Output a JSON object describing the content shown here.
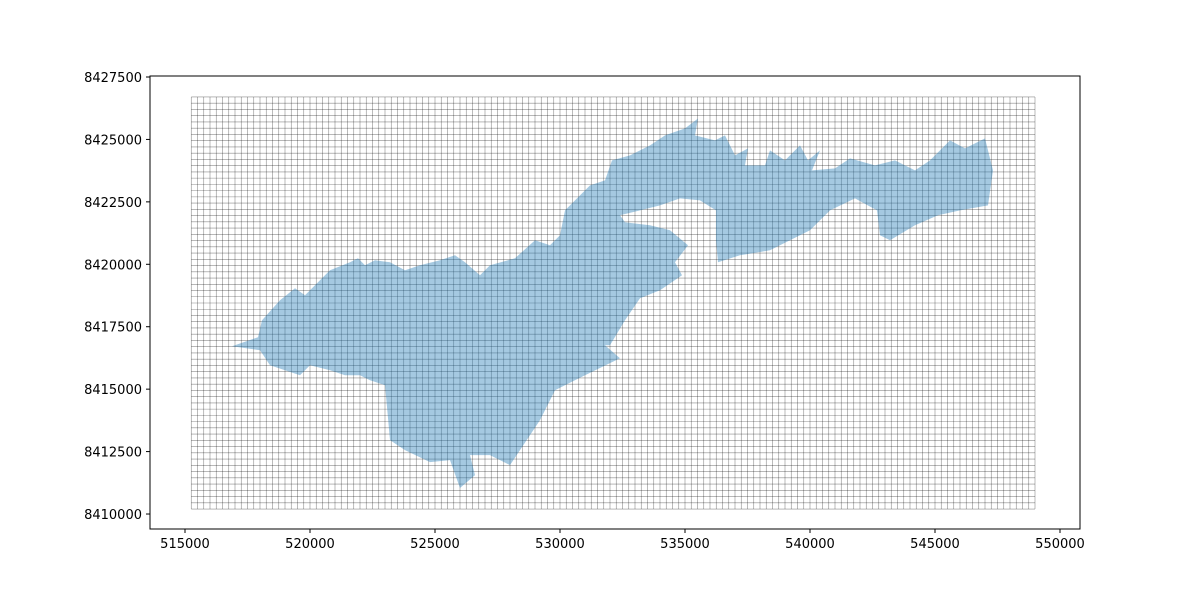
{
  "chart_data": {
    "type": "map",
    "xlim": [
      513600,
      550800
    ],
    "ylim": [
      8409400,
      8427540
    ],
    "xticks": [
      515000,
      520000,
      525000,
      530000,
      535000,
      540000,
      545000,
      550000
    ],
    "yticks": [
      8410000,
      8412500,
      8415000,
      8417500,
      8420000,
      8422500,
      8425000,
      8427500
    ],
    "mesh": {
      "xlim": [
        515250,
        549000
      ],
      "ylim": [
        8410200,
        8426700
      ],
      "cell_size": 250,
      "color": "#000000"
    },
    "polygon": {
      "color": "#1f77b4",
      "x": [
        516880,
        517920,
        518080,
        518800,
        519400,
        519800,
        520400,
        520800,
        521600,
        521920,
        522200,
        522600,
        523200,
        523800,
        524400,
        525200,
        525800,
        526200,
        526800,
        527200,
        528200,
        529000,
        529600,
        530000,
        530200,
        530800,
        531200,
        531800,
        532080,
        532800,
        533600,
        534200,
        535000,
        535520,
        535400,
        536200,
        536600,
        537000,
        537520,
        537400,
        538200,
        538400,
        539000,
        539600,
        539920,
        540400,
        540080,
        541000,
        541600,
        542600,
        543400,
        544200,
        544800,
        545600,
        546200,
        547000,
        547320,
        547120,
        546000,
        545120,
        544200,
        543200,
        542800,
        542680,
        541800,
        540800,
        540000,
        539200,
        538400,
        537200,
        536320,
        536240,
        536240,
        535600,
        534800,
        534000,
        533200,
        532400,
        532600,
        533600,
        534400,
        535120,
        534600,
        534880,
        534000,
        533200,
        532600,
        532000,
        531800,
        532400,
        531000,
        529800,
        529200,
        528000,
        527200,
        526400,
        526600,
        526000,
        525600,
        524800,
        523800,
        523200,
        523000,
        522400,
        522000,
        521400,
        520800,
        520000,
        519600,
        518400,
        518000
      ],
      "y": [
        8416720,
        8417080,
        8417760,
        8418560,
        8419040,
        8418760,
        8419360,
        8419760,
        8420080,
        8420240,
        8419960,
        8420160,
        8420080,
        8419760,
        8419960,
        8420160,
        8420360,
        8420080,
        8419560,
        8419960,
        8420240,
        8420960,
        8420760,
        8421160,
        8422160,
        8422760,
        8423160,
        8423360,
        8424160,
        8424360,
        8424760,
        8425160,
        8425440,
        8425840,
        8425160,
        8424960,
        8425160,
        8424360,
        8424640,
        8423960,
        8423960,
        8424560,
        8424160,
        8424760,
        8424160,
        8424560,
        8423760,
        8423840,
        8424240,
        8423960,
        8424160,
        8423760,
        8424160,
        8424960,
        8424640,
        8425040,
        8423760,
        8422360,
        8422160,
        8421960,
        8421560,
        8420960,
        8421160,
        8422160,
        8422640,
        8422160,
        8421360,
        8420960,
        8420560,
        8420360,
        8420080,
        8420960,
        8422160,
        8422560,
        8422640,
        8422360,
        8422160,
        8421960,
        8421680,
        8421560,
        8421360,
        8420760,
        8420080,
        8419560,
        8418960,
        8418640,
        8417760,
        8416760,
        8416760,
        8416240,
        8415560,
        8414960,
        8413760,
        8411960,
        8412360,
        8412360,
        8411560,
        8411040,
        8412160,
        8412080,
        8412560,
        8412960,
        8415160,
        8415360,
        8415560,
        8415560,
        8415760,
        8415960,
        8415560,
        8415960,
        8416560
      ]
    }
  }
}
